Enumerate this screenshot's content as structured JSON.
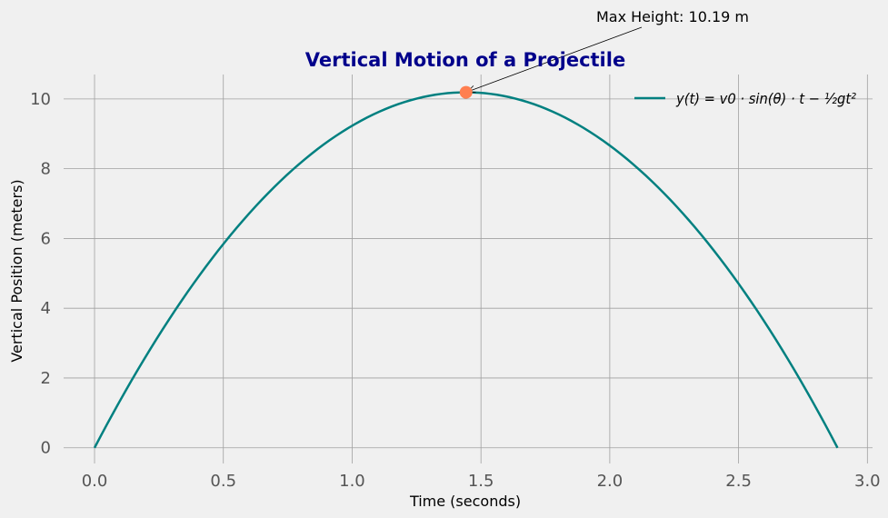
{
  "chart_data": {
    "type": "line",
    "title": "Vertical Motion of a Projectile",
    "xlabel": "Time (seconds)",
    "ylabel": "Vertical Position (meters)",
    "xlim": [
      -0.12,
      3.02
    ],
    "ylim": [
      -0.45,
      10.7
    ],
    "xticks": [
      0.0,
      0.5,
      1.0,
      1.5,
      2.0,
      2.5,
      3.0
    ],
    "xtick_labels": [
      "0.0",
      "0.5",
      "1.0",
      "1.5",
      "2.0",
      "2.5",
      "3.0"
    ],
    "yticks": [
      0,
      2,
      4,
      6,
      8,
      10
    ],
    "ytick_labels": [
      "0",
      "2",
      "4",
      "6",
      "8",
      "10"
    ],
    "grid": true,
    "legend_position": "top-right",
    "series": [
      {
        "legend": "y(t) = v0 · sin(θ) · t − ½gt²",
        "color": "#008080",
        "peak_time": 1.442,
        "peak_height": 10.19,
        "end_time": 2.884
      }
    ],
    "annotation": {
      "text": "Max Height: 10.19 m",
      "x": 1.442,
      "y": 10.19
    },
    "marker_color": "#ff7f50",
    "title_color": "#00008b"
  }
}
